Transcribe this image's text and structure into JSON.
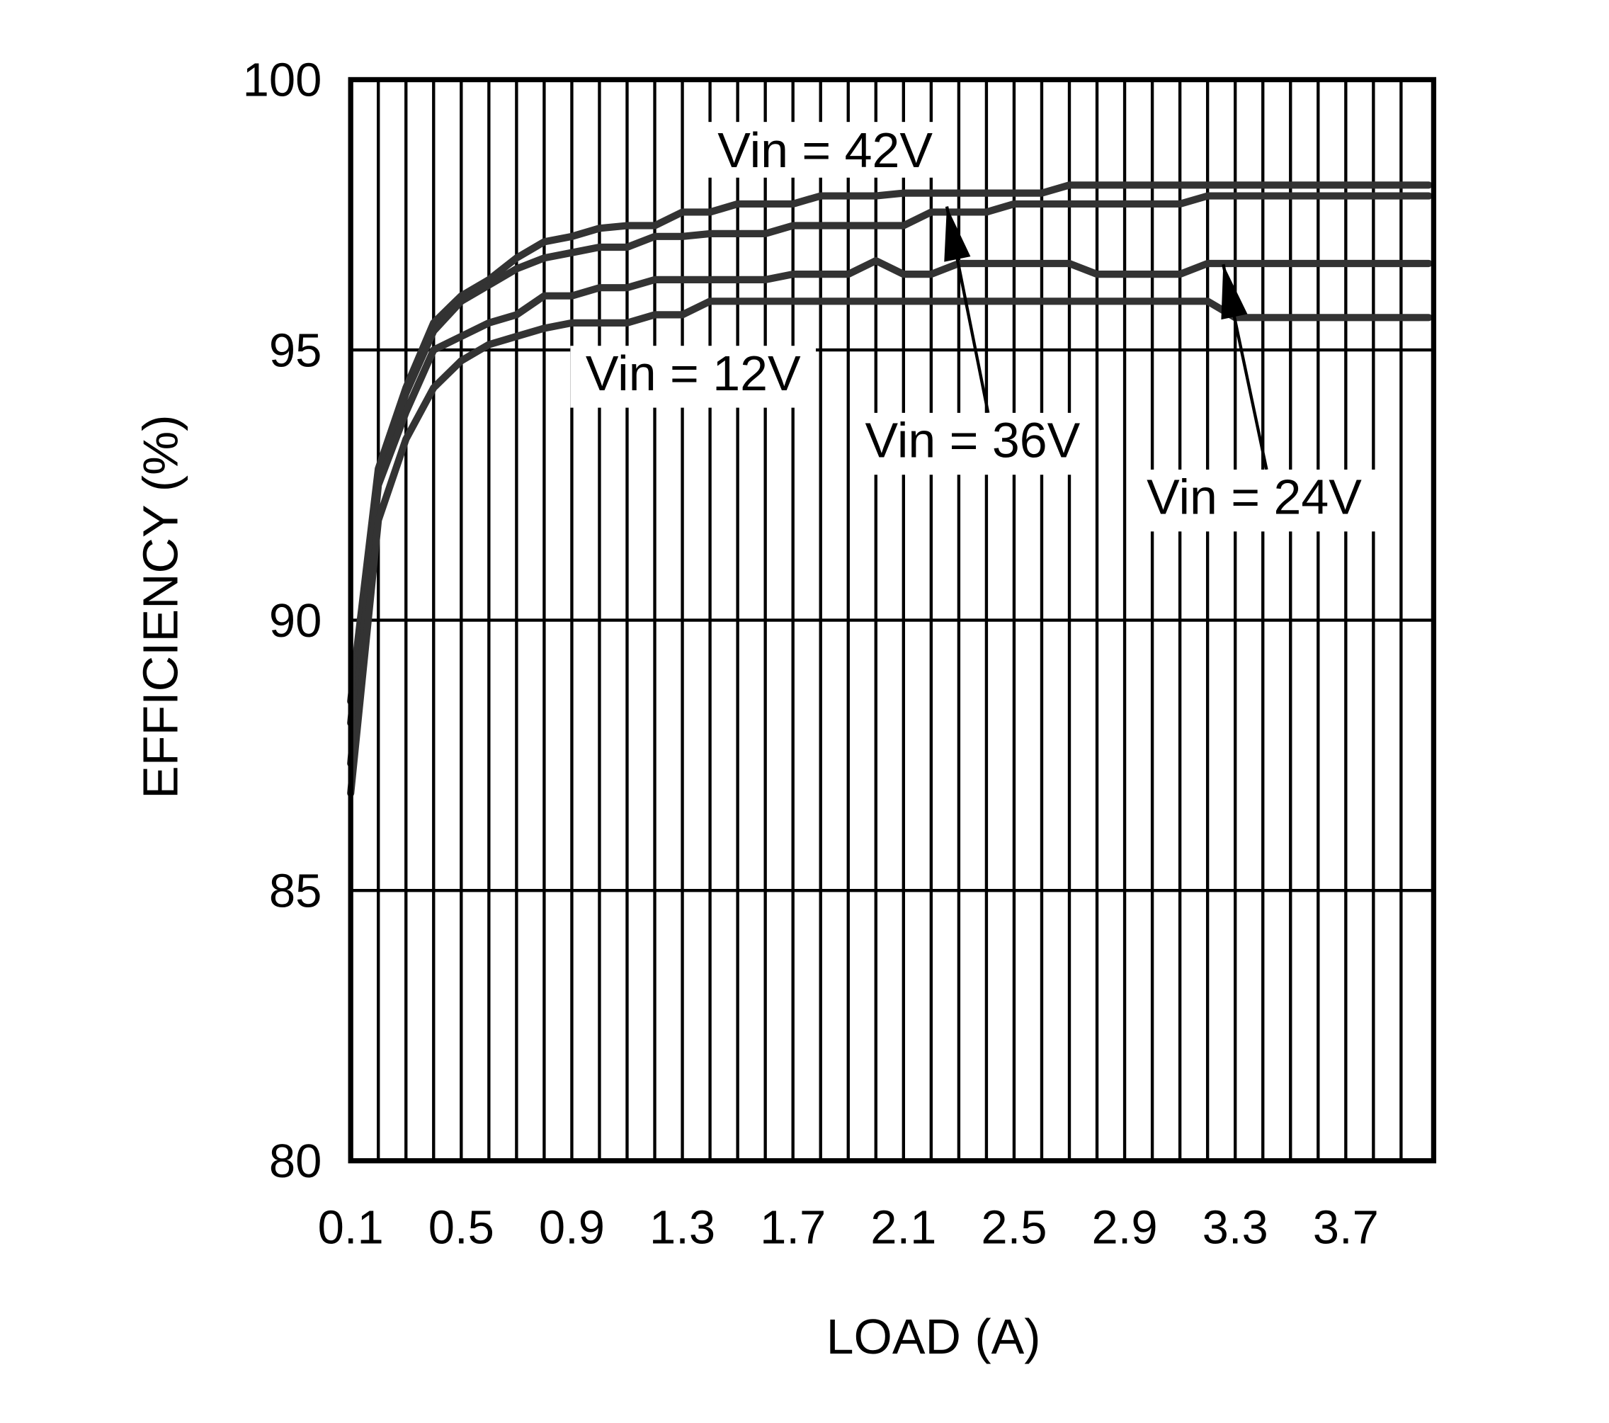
{
  "chart_data": {
    "type": "line",
    "title": "",
    "xlabel": "LOAD (A)",
    "ylabel": "EFFICIENCY (%)",
    "xlim": [
      0.1,
      4.0
    ],
    "ylim": [
      80,
      100
    ],
    "x_tick_labels": [
      "0.1",
      "0.5",
      "0.9",
      "1.3",
      "1.7",
      "2.1",
      "2.5",
      "2.9",
      "3.3",
      "3.7"
    ],
    "y_tick_labels": [
      "80",
      "85",
      "90",
      "95",
      "100"
    ],
    "grid": {
      "x_minor_step": 0.1,
      "y_step": 5,
      "on": true
    },
    "line_color": "#333333",
    "x": [
      0.1,
      0.2,
      0.3,
      0.4,
      0.5,
      0.6,
      0.7,
      0.8,
      0.9,
      1.0,
      1.1,
      1.2,
      1.3,
      1.4,
      1.5,
      1.6,
      1.7,
      1.8,
      1.9,
      2.0,
      2.1,
      2.2,
      2.3,
      2.4,
      2.5,
      2.6,
      2.7,
      2.8,
      2.9,
      3.0,
      3.1,
      3.2,
      3.3,
      3.4,
      3.5,
      3.6,
      3.7,
      3.8,
      3.9,
      4.0
    ],
    "series": [
      {
        "name": "Vin = 42V",
        "values": [
          88.5,
          92.8,
          94.3,
          95.5,
          96.0,
          96.3,
          96.7,
          97.0,
          97.1,
          97.25,
          97.3,
          97.3,
          97.55,
          97.55,
          97.7,
          97.7,
          97.7,
          97.85,
          97.85,
          97.85,
          97.9,
          97.9,
          97.9,
          97.9,
          97.9,
          97.9,
          98.05,
          98.05,
          98.05,
          98.05,
          98.05,
          98.05,
          98.05,
          98.05,
          98.05,
          98.05,
          98.05,
          98.05,
          98.05,
          98.05
        ]
      },
      {
        "name": "Vin = 36V",
        "values": [
          88.1,
          92.7,
          94.2,
          95.35,
          95.9,
          96.2,
          96.5,
          96.7,
          96.8,
          96.9,
          96.9,
          97.1,
          97.1,
          97.15,
          97.15,
          97.15,
          97.3,
          97.3,
          97.3,
          97.3,
          97.3,
          97.55,
          97.55,
          97.55,
          97.7,
          97.7,
          97.7,
          97.7,
          97.7,
          97.7,
          97.7,
          97.85,
          97.85,
          97.85,
          97.85,
          97.85,
          97.85,
          97.85,
          97.85,
          97.85
        ]
      },
      {
        "name": "Vin = 24V",
        "values": [
          87.35,
          92.5,
          93.85,
          95.0,
          95.25,
          95.5,
          95.65,
          96.0,
          96.0,
          96.15,
          96.15,
          96.3,
          96.3,
          96.3,
          96.3,
          96.3,
          96.4,
          96.4,
          96.4,
          96.65,
          96.4,
          96.4,
          96.6,
          96.6,
          96.6,
          96.6,
          96.6,
          96.4,
          96.4,
          96.4,
          96.4,
          96.6,
          96.6,
          96.6,
          96.6,
          96.6,
          96.6,
          96.6,
          96.6,
          96.6
        ]
      },
      {
        "name": "Vin = 12V",
        "values": [
          86.8,
          91.85,
          93.35,
          94.3,
          94.8,
          95.1,
          95.25,
          95.4,
          95.5,
          95.5,
          95.5,
          95.65,
          95.65,
          95.9,
          95.9,
          95.9,
          95.9,
          95.9,
          95.9,
          95.9,
          95.9,
          95.9,
          95.9,
          95.9,
          95.9,
          95.9,
          95.9,
          95.9,
          95.9,
          95.9,
          95.9,
          95.9,
          95.6,
          95.6,
          95.6,
          95.6,
          95.6,
          95.6,
          95.6,
          95.6
        ]
      }
    ],
    "annotations": [
      "Vin = 42V",
      "Vin = 12V",
      "Vin = 36V",
      "Vin = 24V"
    ]
  }
}
